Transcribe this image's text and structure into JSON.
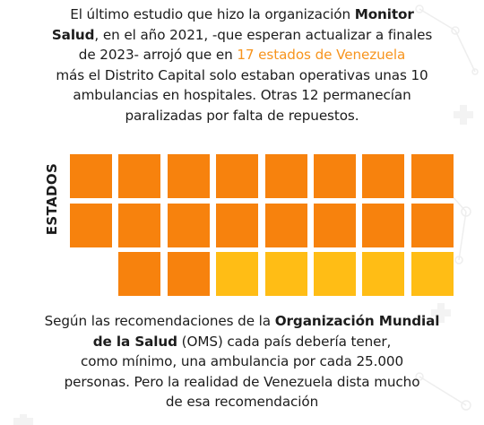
{
  "top_text": {
    "l1_a": "El último estudio que hizo la organización ",
    "l1_b": "Monitor",
    "l2_a": "Salud",
    "l2_b": ", en el año 2021, -que esperan actualizar a finales",
    "l3_a": "de 2023-  arrojó que en ",
    "l3_b": "17 estados de Venezuela",
    "l4": "más el Distrito Capital solo estaban operativas unas 10",
    "l5": "ambulancias en hospitales. Otras 12 permanecían",
    "l6": "paralizadas por falta de repuestos."
  },
  "axis_label": "ESTADOS",
  "grid": {
    "colors": {
      "operativas": "#f7820d",
      "paralizadas": "#ffbd15"
    },
    "rows": [
      [
        "operativas",
        "operativas",
        "operativas",
        "operativas",
        "operativas",
        "operativas",
        "operativas",
        "operativas"
      ],
      [
        "operativas",
        "operativas",
        "operativas",
        "operativas",
        "operativas",
        "operativas",
        "operativas",
        "operativas"
      ],
      [
        "",
        "operativas",
        "operativas",
        "paralizadas",
        "paralizadas",
        "paralizadas",
        "paralizadas",
        "paralizadas"
      ]
    ]
  },
  "bottom_text": {
    "l1_a": "Según las recomendaciones de la ",
    "l1_b": "Organización Mundial",
    "l2_a": "de la Salud",
    "l2_b": " (OMS) cada país debería tener,",
    "l3": "como mínimo, una ambulancia por cada 25.000",
    "l4": "personas. Pero la realidad de Venezuela dista mucho",
    "l5": "de esa recomendación"
  }
}
